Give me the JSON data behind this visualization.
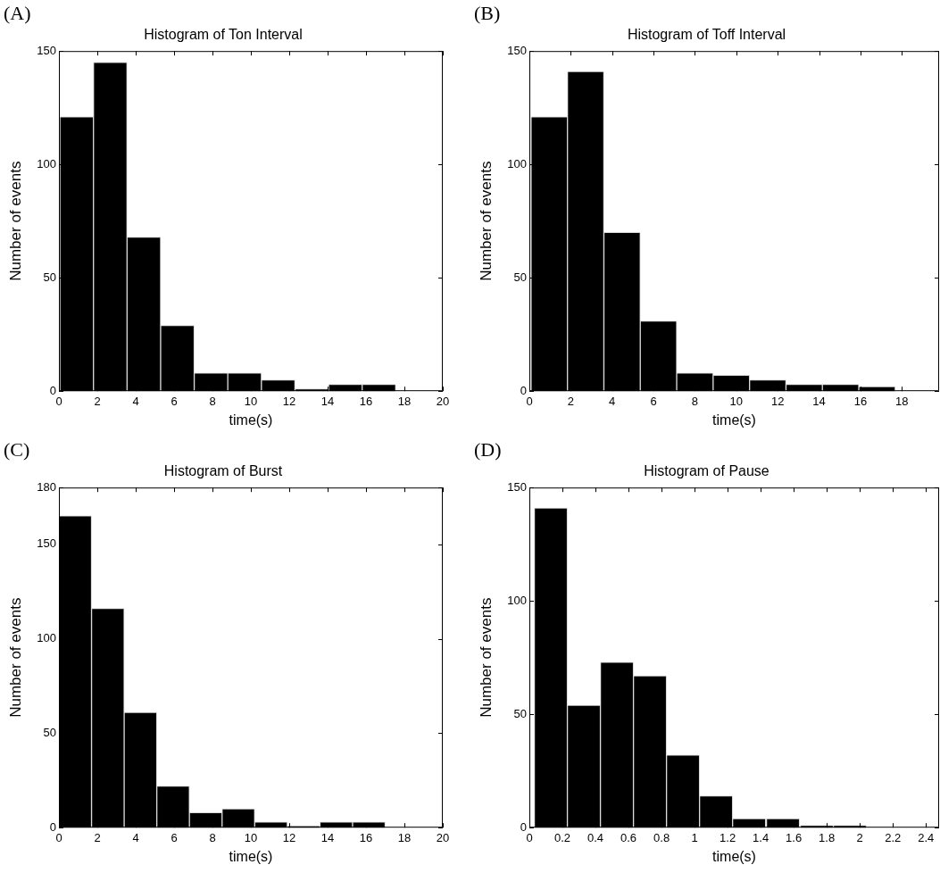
{
  "chart_data": [
    {
      "type": "histogram",
      "title": "Histogram of Ton Interval",
      "xlabel": "time(s)",
      "ylabel": "Number of events",
      "annotations": [
        "(A)"
      ],
      "color": "#000000",
      "bins": [
        0.05,
        1.8,
        3.55,
        5.3,
        7.05,
        8.8,
        10.55,
        12.3,
        14.05,
        15.8,
        17.55
      ],
      "values": [
        121,
        145,
        68,
        29,
        8,
        8,
        5,
        1,
        3,
        3
      ],
      "xlim": [
        0,
        20
      ],
      "xticks": [
        0,
        2,
        4,
        6,
        8,
        10,
        12,
        14,
        16,
        18,
        20
      ],
      "ylim": [
        0,
        150
      ],
      "yticks": [
        0,
        50,
        100,
        150
      ]
    },
    {
      "type": "histogram",
      "title": "Histogram of Toff Interval",
      "xlabel": "time(s)",
      "ylabel": "Number of events",
      "annotations": [
        "(B)"
      ],
      "color": "#000000",
      "bins": [
        0.08,
        1.84,
        3.6,
        5.36,
        7.12,
        8.88,
        10.64,
        12.4,
        14.16,
        15.92,
        17.68
      ],
      "values": [
        121,
        141,
        70,
        31,
        8,
        7,
        5,
        3,
        3,
        2
      ],
      "xlim": [
        0,
        19.8
      ],
      "xticks": [
        0,
        2,
        4,
        6,
        8,
        10,
        12,
        14,
        16,
        18
      ],
      "ylim": [
        0,
        150
      ],
      "yticks": [
        0,
        50,
        100,
        150
      ]
    },
    {
      "type": "histogram",
      "title": "Histogram of Burst",
      "xlabel": "time(s)",
      "ylabel": "Number of events",
      "annotations": [
        "(C)"
      ],
      "color": "#000000",
      "bins": [
        0,
        1.7,
        3.4,
        5.1,
        6.8,
        8.5,
        10.2,
        11.9,
        13.6,
        15.3,
        17
      ],
      "values": [
        165,
        116,
        61,
        22,
        8,
        10,
        3,
        1,
        3,
        3
      ],
      "xlim": [
        0,
        20
      ],
      "xticks": [
        0,
        2,
        4,
        6,
        8,
        10,
        12,
        14,
        16,
        18,
        20
      ],
      "ylim": [
        0,
        180
      ],
      "yticks": [
        0,
        50,
        100,
        150,
        180
      ]
    },
    {
      "type": "histogram",
      "title": "Histogram of Pause",
      "xlabel": "time(s)",
      "ylabel": "Number of events",
      "annotations": [
        "(D)"
      ],
      "color": "#000000",
      "bins": [
        0.03,
        0.23,
        0.43,
        0.63,
        0.83,
        1.03,
        1.23,
        1.43,
        1.64,
        1.84,
        2.04
      ],
      "values": [
        141,
        54,
        73,
        67,
        32,
        14,
        4,
        4,
        1,
        1
      ],
      "xlim": [
        0,
        2.48
      ],
      "xticks": [
        0,
        0.2,
        0.4,
        0.6,
        0.8,
        1,
        1.2,
        1.4,
        1.6,
        1.8,
        2,
        2.2,
        2.4
      ],
      "ylim": [
        0,
        150
      ],
      "yticks": [
        0,
        50,
        100,
        150
      ]
    }
  ]
}
